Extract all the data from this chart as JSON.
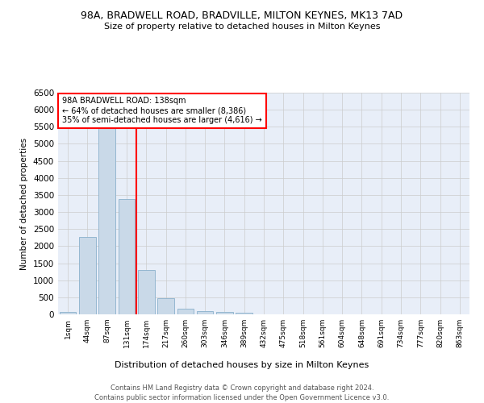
{
  "title_line1": "98A, BRADWELL ROAD, BRADVILLE, MILTON KEYNES, MK13 7AD",
  "title_line2": "Size of property relative to detached houses in Milton Keynes",
  "xlabel": "Distribution of detached houses by size in Milton Keynes",
  "ylabel": "Number of detached properties",
  "footer_line1": "Contains HM Land Registry data © Crown copyright and database right 2024.",
  "footer_line2": "Contains public sector information licensed under the Open Government Licence v3.0.",
  "annotation_line1": "98A BRADWELL ROAD: 138sqm",
  "annotation_line2": "← 64% of detached houses are smaller (8,386)",
  "annotation_line3": "35% of semi-detached houses are larger (4,616) →",
  "bar_color": "#c9d9e8",
  "bar_edge_color": "#8ab0cc",
  "vline_color": "red",
  "vline_x": 3.5,
  "categories": [
    "1sqm",
    "44sqm",
    "87sqm",
    "131sqm",
    "174sqm",
    "217sqm",
    "260sqm",
    "303sqm",
    "346sqm",
    "389sqm",
    "432sqm",
    "475sqm",
    "518sqm",
    "561sqm",
    "604sqm",
    "648sqm",
    "691sqm",
    "734sqm",
    "777sqm",
    "820sqm",
    "863sqm"
  ],
  "values": [
    75,
    2270,
    5450,
    3380,
    1310,
    480,
    170,
    100,
    75,
    50,
    0,
    0,
    0,
    0,
    0,
    0,
    0,
    0,
    0,
    0,
    0
  ],
  "ylim": [
    0,
    6500
  ],
  "yticks": [
    0,
    500,
    1000,
    1500,
    2000,
    2500,
    3000,
    3500,
    4000,
    4500,
    5000,
    5500,
    6000,
    6500
  ],
  "grid_color": "#cccccc",
  "bg_color": "#e8eef8",
  "annotation_box_edge": "red",
  "annotation_box_face": "white"
}
